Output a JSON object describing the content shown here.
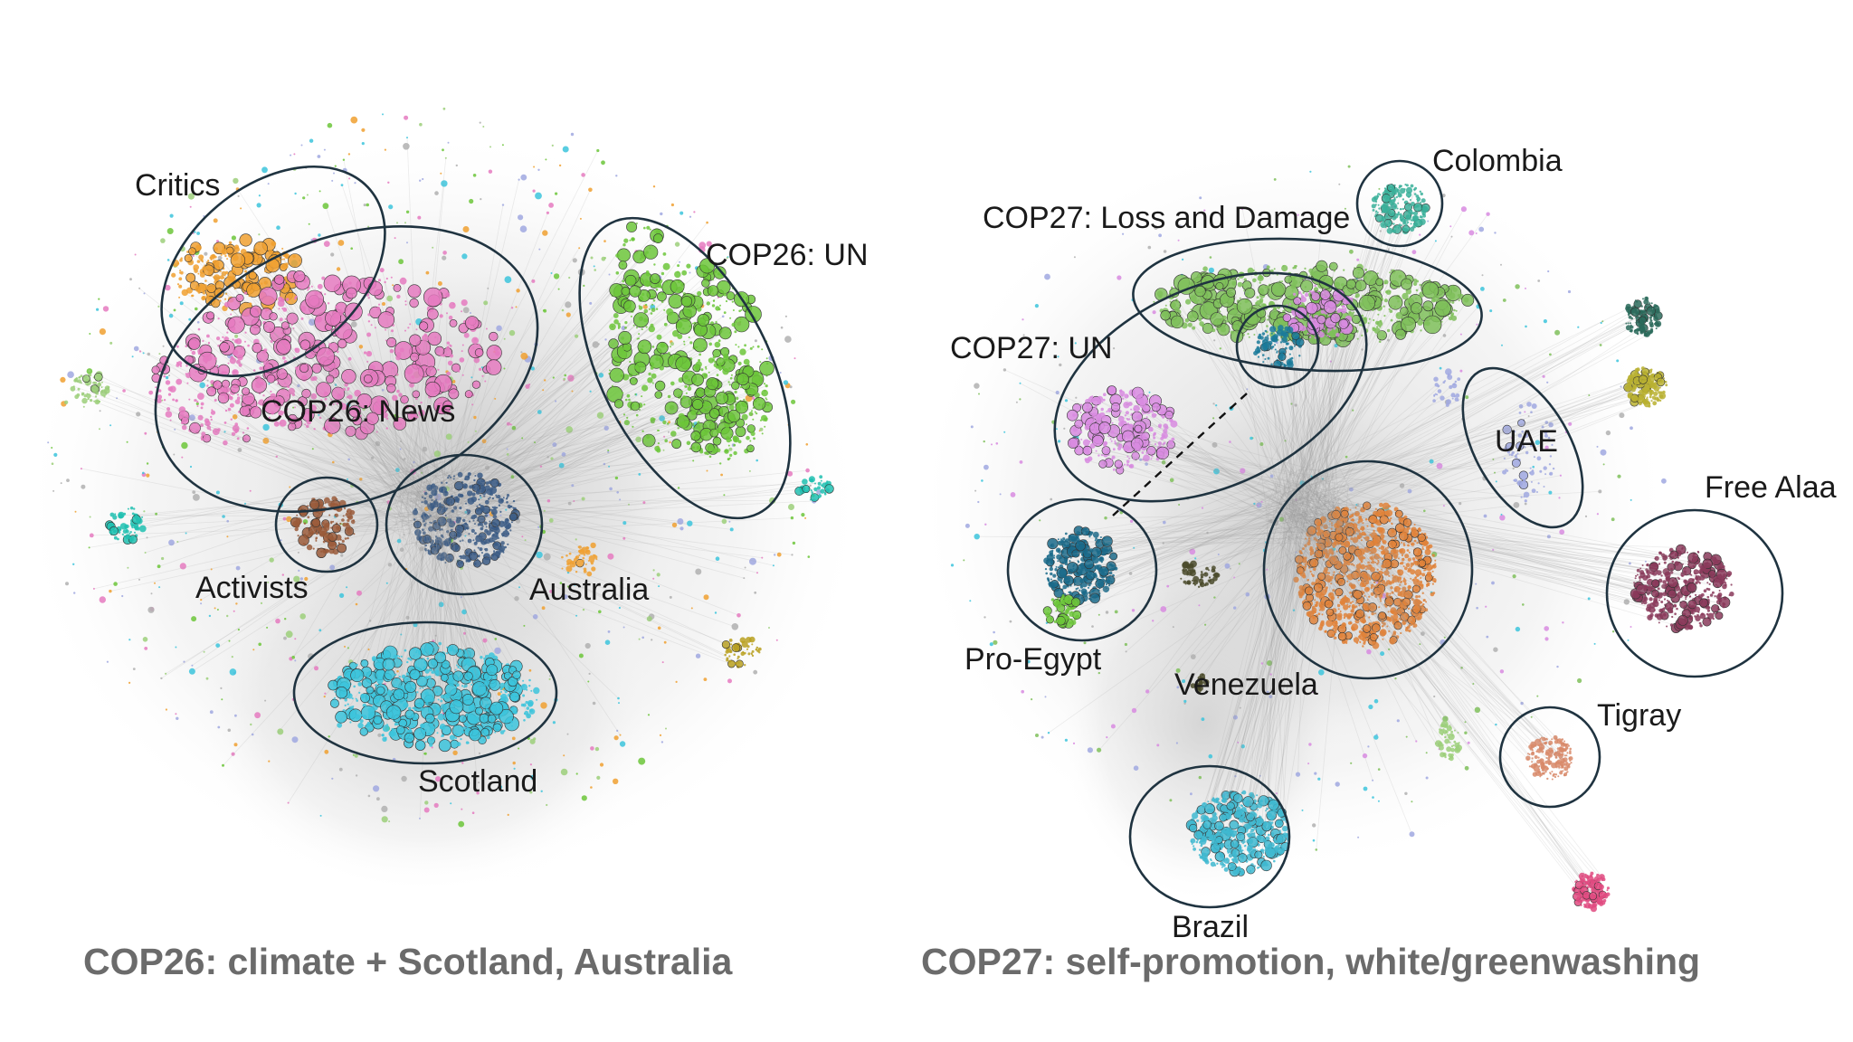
{
  "figure": {
    "left": {
      "caption": "COP26: climate + Scotland, Australia",
      "clusters": [
        {
          "label": "Critics",
          "color": "#f0a030"
        },
        {
          "label": "COP26: News",
          "color": "#e57ac0"
        },
        {
          "label": "COP26: UN",
          "color": "#6cc63a"
        },
        {
          "label": "Activists",
          "color": "#9a5a3a"
        },
        {
          "label": "Australia",
          "color": "#3a5a85"
        },
        {
          "label": "Scotland",
          "color": "#3cc4dc"
        }
      ]
    },
    "right": {
      "caption": "COP27: self-promotion, white/greenwashing",
      "clusters": [
        {
          "label": "Colombia",
          "color": "#3ab09a"
        },
        {
          "label": "COP27: Loss and Damage",
          "color": "#7fbf5a"
        },
        {
          "label": "COP27: UN",
          "color": "#d88be0"
        },
        {
          "label": "UAE",
          "color": "#a0a8e0"
        },
        {
          "label": "Free Alaa",
          "color": "#8a3a5a"
        },
        {
          "label": "Pro-Egypt",
          "color": "#1a6a8a"
        },
        {
          "label": "Venezuela",
          "color": "#4a4a2a"
        },
        {
          "label": "Tigray",
          "color": "#d88a6a"
        },
        {
          "label": "Brazil",
          "color": "#40b8d0"
        }
      ]
    }
  }
}
